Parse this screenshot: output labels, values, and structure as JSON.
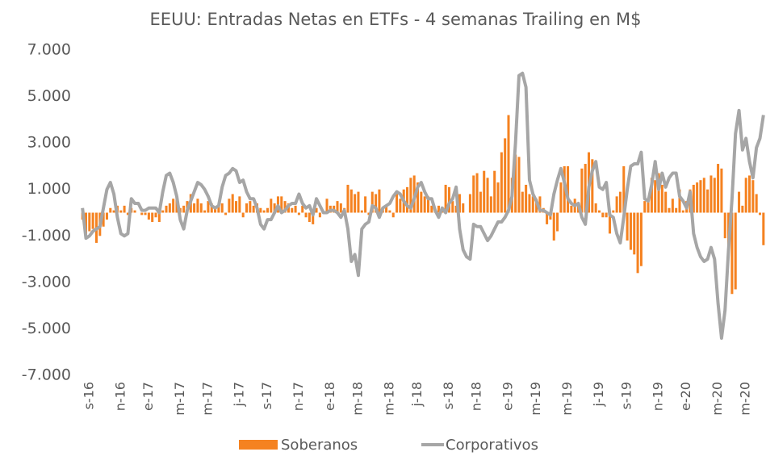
{
  "chart_data": {
    "type": "bar_line",
    "title": "EEUU: Entradas Netas en ETFs -  4 semanas Trailing en M$",
    "categories": [
      null,
      null,
      "s-16",
      null,
      null,
      null,
      null,
      null,
      null,
      null,
      null,
      "n-16",
      null,
      null,
      null,
      null,
      null,
      null,
      null,
      "e-17",
      null,
      null,
      null,
      null,
      null,
      null,
      null,
      null,
      "m-17",
      null,
      null,
      null,
      null,
      null,
      null,
      null,
      "m-17",
      null,
      null,
      null,
      null,
      null,
      null,
      null,
      null,
      "j-17",
      null,
      null,
      null,
      null,
      null,
      null,
      null,
      "s-17",
      null,
      null,
      null,
      null,
      null,
      null,
      null,
      null,
      "n-17",
      null,
      null,
      null,
      null,
      null,
      null,
      null,
      null,
      "e-18",
      null,
      null,
      null,
      null,
      null,
      null,
      null,
      "m-18",
      null,
      null,
      null,
      null,
      null,
      null,
      null,
      null,
      "m-18",
      null,
      null,
      null,
      null,
      null,
      null,
      null,
      "j-18",
      null,
      null,
      null,
      null,
      null,
      null,
      null,
      null,
      "s-18",
      null,
      null,
      null,
      null,
      null,
      null,
      null,
      "n-18",
      null,
      null,
      null,
      null,
      null,
      null,
      null,
      null,
      "e-19",
      null,
      null,
      null,
      null,
      null,
      null,
      null,
      "m-19",
      null,
      null,
      null,
      null,
      null,
      null,
      null,
      null,
      "m-19",
      null,
      null,
      null,
      null,
      null,
      null,
      null,
      null,
      "j-19",
      null,
      null,
      null,
      null,
      null,
      null,
      null,
      "s-19",
      null,
      null,
      null,
      null,
      null,
      null,
      null,
      null,
      "n-19",
      null,
      null,
      null,
      null,
      null,
      null,
      null,
      "e-20",
      null,
      null,
      null,
      null,
      null,
      null,
      null,
      null,
      "m-20",
      null,
      null,
      null,
      null,
      null,
      null,
      null,
      "m-20",
      null,
      null,
      null,
      null,
      null
    ],
    "series": [
      {
        "name": "Soberanos",
        "kind": "bar",
        "color": "#f58220",
        "values": [
          -300,
          -1000,
          -800,
          -700,
          -1300,
          -1000,
          -600,
          -300,
          200,
          100,
          300,
          100,
          300,
          -100,
          200,
          100,
          0,
          -100,
          -100,
          -300,
          -400,
          -200,
          -400,
          100,
          300,
          400,
          600,
          800,
          200,
          300,
          500,
          800,
          400,
          600,
          400,
          100,
          500,
          400,
          200,
          300,
          400,
          -100,
          600,
          800,
          500,
          700,
          -200,
          400,
          500,
          300,
          400,
          200,
          100,
          200,
          600,
          400,
          700,
          700,
          500,
          400,
          200,
          300,
          -100,
          300,
          -200,
          -400,
          -500,
          200,
          -200,
          0,
          600,
          300,
          300,
          500,
          400,
          200,
          1200,
          1000,
          800,
          900,
          100,
          700,
          -100,
          900,
          800,
          1000,
          200,
          300,
          100,
          -200,
          900,
          600,
          1000,
          1100,
          1500,
          1600,
          1300,
          900,
          700,
          700,
          300,
          100,
          300,
          200,
          1200,
          1100,
          500,
          300,
          800,
          400,
          0,
          800,
          1600,
          1700,
          900,
          1800,
          1500,
          700,
          1800,
          1300,
          2600,
          3200,
          4200,
          1500,
          2500,
          2400,
          900,
          1200,
          800,
          700,
          600,
          700,
          200,
          -500,
          -300,
          -1200,
          -800,
          1300,
          2000,
          2000,
          300,
          600,
          400,
          1900,
          2100,
          2600,
          2300,
          400,
          100,
          -200,
          -200,
          -900,
          100,
          700,
          900,
          2000,
          -1200,
          -1600,
          -1800,
          -2600,
          -2300,
          500,
          500,
          1500,
          1400,
          1700,
          1200,
          900,
          200,
          600,
          200,
          1000,
          100,
          500,
          1000,
          1200,
          1300,
          1400,
          1500,
          1000,
          1600,
          1500,
          2100,
          1900,
          -1100,
          -1500,
          -3500,
          -3300,
          900,
          300,
          1500,
          1600,
          1400,
          800,
          -100,
          -1400
        ]
      },
      {
        "name": "Corporativos",
        "kind": "line",
        "color": "#a6a6a6",
        "values": [
          200,
          -1100,
          -1000,
          -800,
          -700,
          -600,
          200,
          1000,
          1300,
          800,
          -200,
          -900,
          -1000,
          -900,
          600,
          400,
          400,
          100,
          100,
          200,
          200,
          200,
          0,
          900,
          1600,
          1700,
          1300,
          700,
          -300,
          -700,
          100,
          500,
          900,
          1300,
          1200,
          1000,
          700,
          300,
          200,
          300,
          1100,
          1600,
          1700,
          1900,
          1800,
          1300,
          1400,
          900,
          600,
          600,
          200,
          -500,
          -700,
          -300,
          -300,
          0,
          300,
          0,
          100,
          300,
          400,
          400,
          800,
          400,
          200,
          300,
          -100,
          600,
          300,
          0,
          0,
          100,
          100,
          0,
          -200,
          100,
          -700,
          -2100,
          -1800,
          -2700,
          -700,
          -500,
          -400,
          300,
          200,
          -200,
          200,
          300,
          400,
          700,
          900,
          800,
          500,
          300,
          200,
          600,
          1100,
          1300,
          900,
          600,
          600,
          100,
          -200,
          200,
          0,
          400,
          600,
          1100,
          -700,
          -1600,
          -1900,
          -2000,
          -500,
          -600,
          -600,
          -900,
          -1200,
          -1000,
          -700,
          -400,
          -400,
          -200,
          100,
          700,
          3000,
          5900,
          6000,
          5400,
          1400,
          800,
          500,
          100,
          100,
          0,
          -100,
          800,
          1400,
          1900,
          1300,
          600,
          400,
          300,
          400,
          -200,
          -500,
          1100,
          1800,
          2200,
          1100,
          1000,
          1300,
          -100,
          -200,
          -900,
          -1300,
          -200,
          1000,
          2000,
          2100,
          2100,
          2600,
          600,
          500,
          1200,
          2200,
          1000,
          1700,
          1100,
          1500,
          1700,
          1700,
          700,
          500,
          200,
          900,
          -900,
          -1500,
          -1900,
          -2100,
          -2000,
          -1500,
          -2000,
          -3900,
          -5400,
          -4200,
          -1600,
          600,
          3400,
          4400,
          2700,
          3200,
          2200,
          1500,
          2800,
          3200,
          4200
        ]
      }
    ],
    "ylim": [
      -7000,
      7000
    ],
    "yticks": [
      {
        "value": -7000,
        "label": "-7.000"
      },
      {
        "value": -5000,
        "label": "-5.000"
      },
      {
        "value": -3000,
        "label": "-3.000"
      },
      {
        "value": -1000,
        "label": "-1.000"
      },
      {
        "value": 1000,
        "label": "1.000"
      },
      {
        "value": 3000,
        "label": "3.000"
      },
      {
        "value": 5000,
        "label": "5.000"
      },
      {
        "value": 7000,
        "label": "7.000"
      }
    ],
    "grid": false
  }
}
